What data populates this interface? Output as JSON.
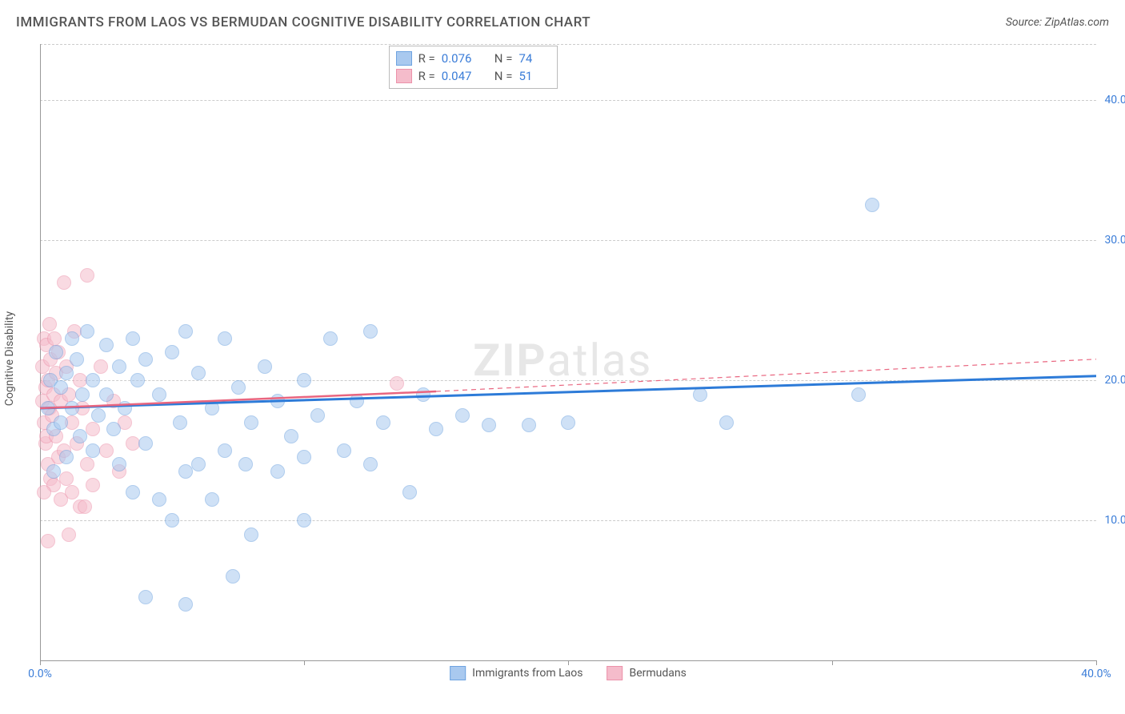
{
  "title": "IMMIGRANTS FROM LAOS VS BERMUDAN COGNITIVE DISABILITY CORRELATION CHART",
  "source": "Source: ZipAtlas.com",
  "ylabel": "Cognitive Disability",
  "watermark_bold": "ZIP",
  "watermark_rest": "atlas",
  "chart": {
    "type": "scatter",
    "background_color": "#ffffff",
    "grid_color": "#cccccc",
    "xlim": [
      0,
      40
    ],
    "ylim": [
      0,
      44
    ],
    "x_ticks": [
      0,
      10,
      20,
      30,
      40
    ],
    "x_tick_labels": [
      "0.0%",
      "",
      "",
      "",
      "40.0%"
    ],
    "y_ticks": [
      10,
      20,
      30,
      40
    ],
    "y_tick_labels": [
      "10.0%",
      "20.0%",
      "30.0%",
      "40.0%"
    ],
    "marker_radius": 9,
    "marker_opacity": 0.55,
    "series": [
      {
        "name": "Immigrants from Laos",
        "fill": "#a9c9ef",
        "stroke": "#6ea3e0",
        "r_label": "R =",
        "r_value": "0.076",
        "n_label": "N =",
        "n_value": "74",
        "trend": {
          "x1": 0,
          "y1": 18.0,
          "x2": 40,
          "y2": 20.3,
          "color": "#2d7bd8",
          "width": 3,
          "dash": false
        },
        "points": [
          [
            0.3,
            18
          ],
          [
            0.4,
            20
          ],
          [
            0.5,
            16.5
          ],
          [
            0.6,
            22
          ],
          [
            0.8,
            19.5
          ],
          [
            0.8,
            17
          ],
          [
            1.0,
            14.5
          ],
          [
            1.0,
            20.5
          ],
          [
            1.2,
            23
          ],
          [
            1.2,
            18
          ],
          [
            1.4,
            21.5
          ],
          [
            1.5,
            16
          ],
          [
            1.6,
            19
          ],
          [
            1.8,
            23.5
          ],
          [
            2,
            15
          ],
          [
            2,
            20
          ],
          [
            2.2,
            17.5
          ],
          [
            2.5,
            22.5
          ],
          [
            2.5,
            19
          ],
          [
            2.8,
            16.5
          ],
          [
            3,
            21
          ],
          [
            3,
            14
          ],
          [
            3.2,
            18
          ],
          [
            3.5,
            23
          ],
          [
            3.5,
            12
          ],
          [
            3.7,
            20
          ],
          [
            4,
            21.5
          ],
          [
            4,
            15.5
          ],
          [
            4,
            4.5
          ],
          [
            4.5,
            11.5
          ],
          [
            4.5,
            19
          ],
          [
            5,
            22
          ],
          [
            5,
            10
          ],
          [
            5.3,
            17
          ],
          [
            5.5,
            23.5
          ],
          [
            5.5,
            13.5
          ],
          [
            5.5,
            4
          ],
          [
            6,
            20.5
          ],
          [
            6,
            14
          ],
          [
            6.5,
            18
          ],
          [
            6.5,
            11.5
          ],
          [
            7,
            23
          ],
          [
            7,
            15
          ],
          [
            7.3,
            6
          ],
          [
            7.5,
            19.5
          ],
          [
            7.8,
            14
          ],
          [
            8,
            17
          ],
          [
            8,
            9
          ],
          [
            8.5,
            21
          ],
          [
            9,
            13.5
          ],
          [
            9,
            18.5
          ],
          [
            9.5,
            16
          ],
          [
            10,
            20
          ],
          [
            10,
            14.5
          ],
          [
            10,
            10
          ],
          [
            10.5,
            17.5
          ],
          [
            11,
            23
          ],
          [
            11.5,
            15
          ],
          [
            12,
            18.5
          ],
          [
            12.5,
            14
          ],
          [
            12.5,
            23.5
          ],
          [
            13,
            17
          ],
          [
            14,
            12
          ],
          [
            14.5,
            19
          ],
          [
            15,
            16.5
          ],
          [
            16,
            17.5
          ],
          [
            17,
            16.8
          ],
          [
            18.5,
            16.8
          ],
          [
            20,
            17
          ],
          [
            25,
            19
          ],
          [
            26,
            17
          ],
          [
            31,
            19
          ],
          [
            31.5,
            32.5
          ],
          [
            0.5,
            13.5
          ]
        ]
      },
      {
        "name": "Bermudans",
        "fill": "#f5bccb",
        "stroke": "#ec92aa",
        "r_label": "R =",
        "r_value": "0.047",
        "n_label": "N =",
        "n_value": "51",
        "trend": {
          "x1": 0,
          "y1": 18.0,
          "x2": 15,
          "y2": 19.2,
          "color": "#e9657f",
          "width": 2.5,
          "dash": false
        },
        "trend_ext": {
          "x1": 15,
          "y1": 19.2,
          "x2": 40,
          "y2": 21.5,
          "color": "#e9657f",
          "width": 1.2,
          "dash": true
        },
        "points": [
          [
            0.1,
            18.5
          ],
          [
            0.1,
            21
          ],
          [
            0.15,
            17
          ],
          [
            0.15,
            23
          ],
          [
            0.2,
            15.5
          ],
          [
            0.2,
            19.5
          ],
          [
            0.25,
            22.5
          ],
          [
            0.25,
            16
          ],
          [
            0.3,
            20
          ],
          [
            0.3,
            14
          ],
          [
            0.35,
            18
          ],
          [
            0.35,
            24
          ],
          [
            0.4,
            13
          ],
          [
            0.4,
            21.5
          ],
          [
            0.45,
            17.5
          ],
          [
            0.5,
            19
          ],
          [
            0.5,
            12.5
          ],
          [
            0.55,
            23
          ],
          [
            0.6,
            16
          ],
          [
            0.6,
            20.5
          ],
          [
            0.7,
            14.5
          ],
          [
            0.7,
            22
          ],
          [
            0.8,
            18.5
          ],
          [
            0.8,
            11.5
          ],
          [
            0.9,
            27
          ],
          [
            0.9,
            15
          ],
          [
            1.0,
            21
          ],
          [
            1.0,
            13
          ],
          [
            1.1,
            19
          ],
          [
            1.2,
            17
          ],
          [
            1.2,
            12
          ],
          [
            1.3,
            23.5
          ],
          [
            1.4,
            15.5
          ],
          [
            1.5,
            20
          ],
          [
            1.5,
            11
          ],
          [
            1.6,
            18
          ],
          [
            1.8,
            14
          ],
          [
            1.8,
            27.5
          ],
          [
            2,
            16.5
          ],
          [
            2,
            12.5
          ],
          [
            2.3,
            21
          ],
          [
            2.5,
            15
          ],
          [
            2.8,
            18.5
          ],
          [
            3,
            13.5
          ],
          [
            3.2,
            17
          ],
          [
            3.5,
            15.5
          ],
          [
            0.3,
            8.5
          ],
          [
            1.1,
            9
          ],
          [
            1.7,
            11
          ],
          [
            0.15,
            12
          ],
          [
            13.5,
            19.8
          ]
        ]
      }
    ]
  },
  "legend": [
    {
      "label": "Immigrants from Laos",
      "fill": "#a9c9ef",
      "stroke": "#6ea3e0"
    },
    {
      "label": "Bermudans",
      "fill": "#f5bccb",
      "stroke": "#ec92aa"
    }
  ]
}
